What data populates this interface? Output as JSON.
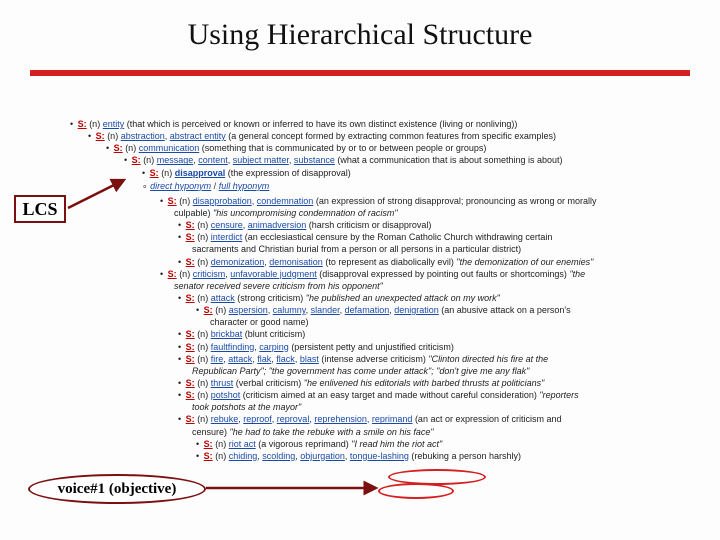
{
  "title": "Using Hierarchical Structure",
  "labels": {
    "lcs": "LCS",
    "voice": "voice#1 (objective)"
  },
  "hyponym_links": {
    "direct": "direct hyponym",
    "full": "full hyponym"
  },
  "entries": [
    {
      "indent": 0,
      "terms": "entity",
      "gloss": "(that which is perceived or known or inferred to have its own distinct existence (living or nonliving))",
      "ex": ""
    },
    {
      "indent": 1,
      "terms": "abstraction, abstract entity",
      "gloss": "(a general concept formed by extracting common features from specific examples)",
      "ex": ""
    },
    {
      "indent": 2,
      "terms": "communication",
      "gloss": "(something that is communicated by or to or between people or groups)",
      "ex": ""
    },
    {
      "indent": 3,
      "terms": "message, content, subject matter, substance",
      "gloss": "(what a communication that is about something is about)",
      "ex": ""
    },
    {
      "indent": 4,
      "terms": "disapproval",
      "gloss": "(the expression of disapproval)",
      "ex": "",
      "bold": true
    }
  ],
  "children": [
    {
      "indent": 5,
      "terms": "disapprobation, condemnation",
      "gloss": "(an expression of strong disapproval; pronouncing as wrong or morally",
      "cont": "culpable)",
      "ex": "\"his uncompromising condemnation of racism\""
    },
    {
      "indent": 6,
      "terms": "censure, animadversion",
      "gloss": "(harsh criticism or disapproval)",
      "ex": ""
    },
    {
      "indent": 6,
      "terms": "interdict",
      "gloss": "(an ecclesiastical censure by the Roman Catholic Church withdrawing certain",
      "cont": "sacraments and Christian burial from a person or all persons in a particular district)",
      "ex": ""
    },
    {
      "indent": 6,
      "terms": "demonization, demonisation",
      "gloss": "(to represent as diabolically evil)",
      "ex": "\"the demonization of our enemies\""
    },
    {
      "indent": 5,
      "terms": "criticism, unfavorable judgment",
      "gloss": "(disapproval expressed by pointing out faults or shortcomings)",
      "ex": "\"the",
      "cont2": "senator received severe criticism from his opponent\""
    },
    {
      "indent": 6,
      "terms": "attack",
      "gloss": "(strong criticism)",
      "ex": "\"he published an unexpected attack on my work\""
    },
    {
      "indent": 7,
      "terms": "aspersion, calumny, slander, defamation, denigration",
      "gloss": "(an abusive attack on a person's",
      "cont": "character or good name)",
      "ex": ""
    },
    {
      "indent": 6,
      "terms": "brickbat",
      "gloss": "(blunt criticism)",
      "ex": ""
    },
    {
      "indent": 6,
      "terms": "faultfinding, carping",
      "gloss": "(persistent petty and unjustified criticism)",
      "ex": ""
    },
    {
      "indent": 6,
      "terms": "fire, attack, flak, flack, blast",
      "gloss": "(intense adverse criticism)",
      "ex": "\"Clinton directed his fire at the",
      "cont2": "Republican Party\"; \"the government has come under attack\"; \"don't give me any flak\""
    },
    {
      "indent": 6,
      "terms": "thrust",
      "gloss": "(verbal criticism)",
      "ex": "\"he enlivened his editorials with barbed thrusts at politicians\""
    },
    {
      "indent": 6,
      "terms": "potshot",
      "gloss": "(criticism aimed at an easy target and made without careful consideration)",
      "ex": "\"reporters",
      "cont2": "took potshots at the mayor\""
    },
    {
      "indent": 6,
      "terms": "rebuke, reproof, reproval, reprehension, reprimand",
      "gloss": "(an act or expression of criticism and",
      "cont": "censure)",
      "ex": "\"he had to take the rebuke with a smile on his face\""
    },
    {
      "indent": 7,
      "terms": "riot act",
      "gloss": "(a vigorous reprimand)",
      "ex": "\"I read him the riot act\""
    },
    {
      "indent": 7,
      "terms": "chiding, scolding, objurgation, tongue-lashing",
      "gloss": "(rebuking a person harshly)",
      "ex": ""
    }
  ],
  "style": {
    "accent": "#d42020",
    "link_color": "#1a4aa8",
    "s_color": "#b00",
    "border_color": "#7a1010"
  }
}
